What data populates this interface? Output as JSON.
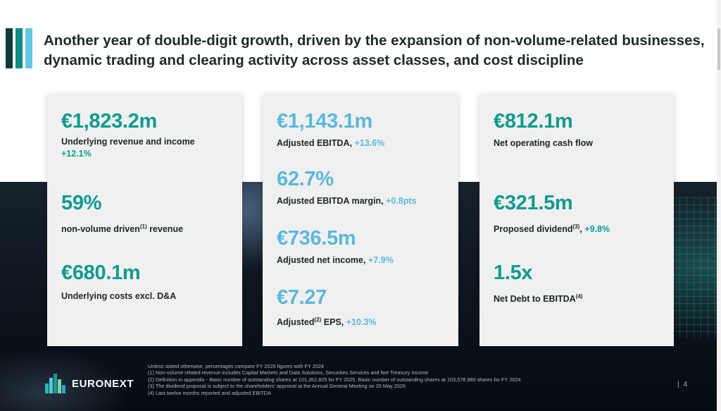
{
  "headline": "Another year of double-digit growth, driven by the expansion of non-volume-related businesses, dynamic trading and clearing activity across asset classes, and cost discipline",
  "colors": {
    "teal": "#0f9a8f",
    "blue": "#5bb8dc",
    "dark_teal": "#0f3b3a"
  },
  "card1": {
    "m1": {
      "value": "€1,823.2m",
      "label": "Underlying revenue and income",
      "change": "+12.1%"
    },
    "m2": {
      "value": "59%",
      "label": "non-volume driven",
      "sup": "(1)",
      "label_after": " revenue"
    },
    "m3": {
      "value": "€680.1m",
      "label": "Underlying costs excl. D&A"
    }
  },
  "card2": {
    "m1": {
      "value": "€1,143.1m",
      "label": "Adjusted EBITDA,",
      "change": "+13.6%"
    },
    "m2": {
      "value": "62.7%",
      "label": "Adjusted EBITDA margin,",
      "change": "+0.8pts"
    },
    "m3": {
      "value": "€736.5m",
      "label": "Adjusted net income,",
      "change": "+7.9%"
    },
    "m4": {
      "value": "€7.27",
      "label": "Adjusted",
      "sup": "(2)",
      "label_after": " EPS,",
      "change": "+10.3%"
    }
  },
  "card3": {
    "m1": {
      "value": "€812.1m",
      "label": "Net operating cash flow"
    },
    "m2": {
      "value": "€321.5m",
      "label": "Proposed dividend",
      "sup": "(3)",
      "label_after": ",",
      "change": "+9.8%"
    },
    "m3": {
      "value": "1.5x",
      "label": "Net Debt to EBITDA",
      "sup": "(4)"
    }
  },
  "footer": {
    "logo_text": "EURONEXT",
    "footnotes": [
      "Unless stated otherwise, percentages compare FY 2025 figures with FY 2024",
      "(1) Non-volume related revenue includes Capital Markets and Data Solutions, Securities Services and Net Treasury Income",
      "(2) Definition in appendix - Basic number of outstanding shares at 101,352,825 for FY 2025. Basic number of outstanding shares at 103,578,980 shares for FY 2024.",
      "(3) The dividend proposal is subject to the shareholders' approval at the Annual General Meeting on 20 May 2026",
      "(4) Last twelve months reported and adjusted EBITDA"
    ],
    "page_number": "4",
    "separator": "|"
  }
}
